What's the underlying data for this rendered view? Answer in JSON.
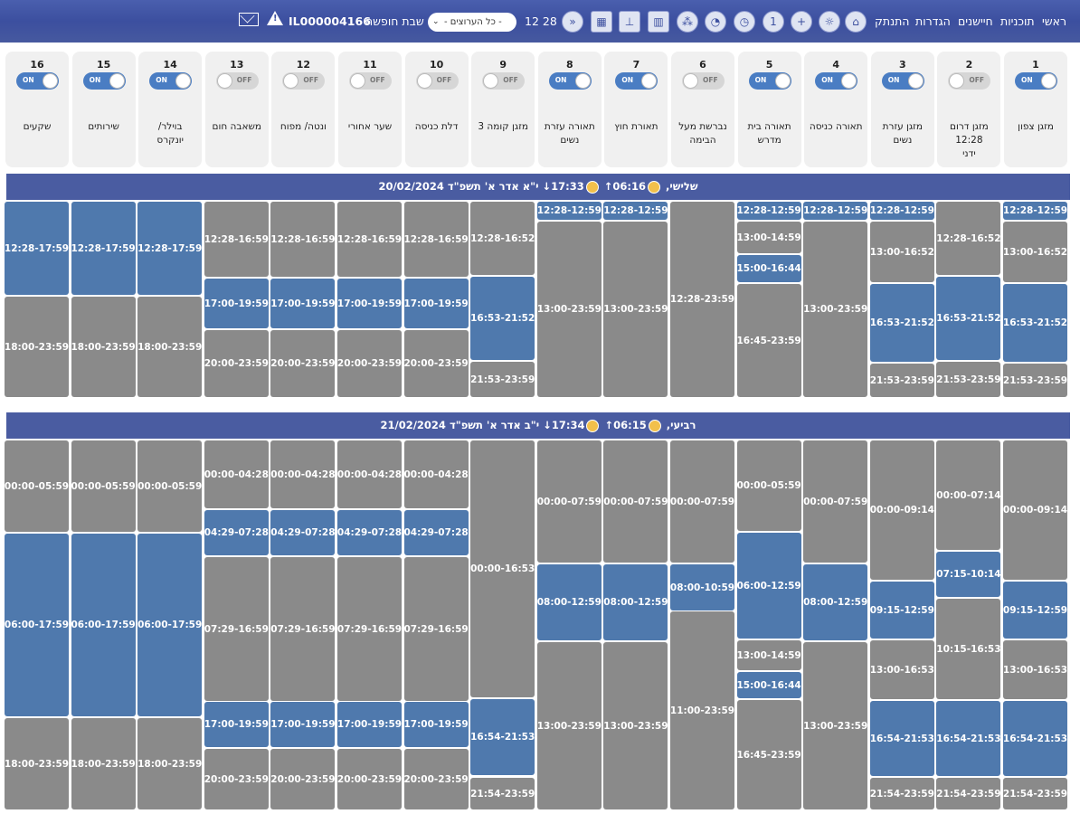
{
  "nav": {
    "items": [
      "ראשי",
      "תוכניות",
      "חיישנים",
      "הגדרות",
      "התנתק"
    ],
    "clock": "12 28",
    "dropdown_value": "- כל הערוצים -",
    "shabbat_label": "שבת חופשה",
    "device_id": "IL000004166",
    "icons": [
      "home-icon",
      "sun-timer-icon",
      "add-clock-icon",
      "timer-1-icon",
      "clock-grid-icon",
      "clock-plus-icon",
      "share-icon",
      "bar-chart-icon",
      "scale-icon",
      "grid-icon",
      "double-chevron-down-icon"
    ]
  },
  "channels": [
    {
      "num": "1",
      "name": "מזגן צפון",
      "state": "ON"
    },
    {
      "num": "2",
      "name": "מזגן דרום\n12:28\nידני",
      "state": "OFF"
    },
    {
      "num": "3",
      "name": "מזגן עזרת\nנשים",
      "state": "ON"
    },
    {
      "num": "4",
      "name": "תאורה כניסה",
      "state": "ON"
    },
    {
      "num": "5",
      "name": "תאורה בית\nמדרש",
      "state": "ON"
    },
    {
      "num": "6",
      "name": "נברשת מעל\nהבימה",
      "state": "OFF"
    },
    {
      "num": "7",
      "name": "תאורת חוץ",
      "state": "ON"
    },
    {
      "num": "8",
      "name": "תאורה עזרת\nנשים",
      "state": "ON"
    },
    {
      "num": "9",
      "name": "מזגן קומה 3",
      "state": "OFF"
    },
    {
      "num": "10",
      "name": "דלת כניסה",
      "state": "OFF"
    },
    {
      "num": "11",
      "name": "שער אחורי",
      "state": "OFF"
    },
    {
      "num": "12",
      "name": "ונטה/ מפוח",
      "state": "OFF"
    },
    {
      "num": "13",
      "name": "משאבה חום",
      "state": "OFF"
    },
    {
      "num": "14",
      "name": "בוילר/\nיונקרס",
      "state": "ON"
    },
    {
      "num": "15",
      "name": "שירותים",
      "state": "ON"
    },
    {
      "num": "16",
      "name": "שקעים",
      "state": "ON"
    }
  ],
  "days": [
    {
      "header": {
        "date_text": "20/02/2024 שלישי,",
        "sunrise": "06:16↑",
        "sunset": "17:33↓",
        "hebrew_date": "י\"א אדר א' תשפ\"ד"
      },
      "columns": [
        [
          {
            "t": "12:28-12:59",
            "a": true
          },
          {
            "t": "13:00-16:52",
            "a": false
          },
          {
            "t": "16:53-21:52",
            "a": true
          },
          {
            "t": "21:53-23:59",
            "a": false
          }
        ],
        [
          {
            "t": "12:28-16:52",
            "a": false
          },
          {
            "t": "16:53-21:52",
            "a": true
          },
          {
            "t": "21:53-23:59",
            "a": false
          }
        ],
        [
          {
            "t": "12:28-12:59",
            "a": true
          },
          {
            "t": "13:00-16:52",
            "a": false
          },
          {
            "t": "16:53-21:52",
            "a": true
          },
          {
            "t": "21:53-23:59",
            "a": false
          }
        ],
        [
          {
            "t": "12:28-12:59",
            "a": true
          },
          {
            "t": "13:00-23:59",
            "a": false
          }
        ],
        [
          {
            "t": "12:28-12:59",
            "a": true
          },
          {
            "t": "13:00-14:59",
            "a": false
          },
          {
            "t": "15:00-16:44",
            "a": true
          },
          {
            "t": "16:45-23:59",
            "a": false
          }
        ],
        [
          {
            "t": "12:28-23:59",
            "a": false
          }
        ],
        [
          {
            "t": "12:28-12:59",
            "a": true
          },
          {
            "t": "13:00-23:59",
            "a": false
          }
        ],
        [
          {
            "t": "12:28-12:59",
            "a": true
          },
          {
            "t": "13:00-23:59",
            "a": false
          }
        ],
        [
          {
            "t": "12:28-16:52",
            "a": false
          },
          {
            "t": "16:53-21:52",
            "a": true
          },
          {
            "t": "21:53-23:59",
            "a": false
          }
        ],
        [
          {
            "t": "12:28-16:59",
            "a": false
          },
          {
            "t": "17:00-19:59",
            "a": true
          },
          {
            "t": "20:00-23:59",
            "a": false
          }
        ],
        [
          {
            "t": "12:28-16:59",
            "a": false
          },
          {
            "t": "17:00-19:59",
            "a": true
          },
          {
            "t": "20:00-23:59",
            "a": false
          }
        ],
        [
          {
            "t": "12:28-16:59",
            "a": false
          },
          {
            "t": "17:00-19:59",
            "a": true
          },
          {
            "t": "20:00-23:59",
            "a": false
          }
        ],
        [
          {
            "t": "12:28-16:59",
            "a": false
          },
          {
            "t": "17:00-19:59",
            "a": true
          },
          {
            "t": "20:00-23:59",
            "a": false
          }
        ],
        [
          {
            "t": "12:28-17:59",
            "a": true
          },
          {
            "t": "18:00-23:59",
            "a": false
          }
        ],
        [
          {
            "t": "12:28-17:59",
            "a": true
          },
          {
            "t": "18:00-23:59",
            "a": false
          }
        ],
        [
          {
            "t": "12:28-17:59",
            "a": true
          },
          {
            "t": "18:00-23:59",
            "a": false
          }
        ]
      ]
    },
    {
      "header": {
        "date_text": "21/02/2024 רביעי,",
        "sunrise": "06:15↑",
        "sunset": "17:34↓",
        "hebrew_date": "י\"ב אדר א' תשפ\"ד"
      },
      "columns": [
        [
          {
            "t": "00:00-09:14",
            "a": false
          },
          {
            "t": "09:15-12:59",
            "a": true
          },
          {
            "t": "13:00-16:53",
            "a": false
          },
          {
            "t": "16:54-21:53",
            "a": true
          },
          {
            "t": "21:54-23:59",
            "a": false
          }
        ],
        [
          {
            "t": "00:00-07:14",
            "a": false
          },
          {
            "t": "07:15-10:14",
            "a": true
          },
          {
            "t": "10:15-16:53",
            "a": false
          },
          {
            "t": "16:54-21:53",
            "a": true
          },
          {
            "t": "21:54-23:59",
            "a": false
          }
        ],
        [
          {
            "t": "00:00-09:14",
            "a": false
          },
          {
            "t": "09:15-12:59",
            "a": true
          },
          {
            "t": "13:00-16:53",
            "a": false
          },
          {
            "t": "16:54-21:53",
            "a": true
          },
          {
            "t": "21:54-23:59",
            "a": false
          }
        ],
        [
          {
            "t": "00:00-07:59",
            "a": false
          },
          {
            "t": "08:00-12:59",
            "a": true
          },
          {
            "t": "13:00-23:59",
            "a": false
          }
        ],
        [
          {
            "t": "00:00-05:59",
            "a": false
          },
          {
            "t": "06:00-12:59",
            "a": true
          },
          {
            "t": "13:00-14:59",
            "a": false
          },
          {
            "t": "15:00-16:44",
            "a": true
          },
          {
            "t": "16:45-23:59",
            "a": false
          }
        ],
        [
          {
            "t": "00:00-07:59",
            "a": false
          },
          {
            "t": "08:00-10:59",
            "a": true
          },
          {
            "t": "11:00-23:59",
            "a": false
          }
        ],
        [
          {
            "t": "00:00-07:59",
            "a": false
          },
          {
            "t": "08:00-12:59",
            "a": true
          },
          {
            "t": "13:00-23:59",
            "a": false
          }
        ],
        [
          {
            "t": "00:00-07:59",
            "a": false
          },
          {
            "t": "08:00-12:59",
            "a": true
          },
          {
            "t": "13:00-23:59",
            "a": false
          }
        ],
        [
          {
            "t": "00:00-16:53",
            "a": false
          },
          {
            "t": "16:54-21:53",
            "a": true
          },
          {
            "t": "21:54-23:59",
            "a": false
          }
        ],
        [
          {
            "t": "00:00-04:28",
            "a": false
          },
          {
            "t": "04:29-07:28",
            "a": true
          },
          {
            "t": "07:29-16:59",
            "a": false
          },
          {
            "t": "17:00-19:59",
            "a": true
          },
          {
            "t": "20:00-23:59",
            "a": false
          }
        ],
        [
          {
            "t": "00:00-04:28",
            "a": false
          },
          {
            "t": "04:29-07:28",
            "a": true
          },
          {
            "t": "07:29-16:59",
            "a": false
          },
          {
            "t": "17:00-19:59",
            "a": true
          },
          {
            "t": "20:00-23:59",
            "a": false
          }
        ],
        [
          {
            "t": "00:00-04:28",
            "a": false
          },
          {
            "t": "04:29-07:28",
            "a": true
          },
          {
            "t": "07:29-16:59",
            "a": false
          },
          {
            "t": "17:00-19:59",
            "a": true
          },
          {
            "t": "20:00-23:59",
            "a": false
          }
        ],
        [
          {
            "t": "00:00-04:28",
            "a": false
          },
          {
            "t": "04:29-07:28",
            "a": true
          },
          {
            "t": "07:29-16:59",
            "a": false
          },
          {
            "t": "17:00-19:59",
            "a": true
          },
          {
            "t": "20:00-23:59",
            "a": false
          }
        ],
        [
          {
            "t": "00:00-05:59",
            "a": false
          },
          {
            "t": "06:00-17:59",
            "a": true
          },
          {
            "t": "18:00-23:59",
            "a": false
          }
        ],
        [
          {
            "t": "00:00-05:59",
            "a": false
          },
          {
            "t": "06:00-17:59",
            "a": true
          },
          {
            "t": "18:00-23:59",
            "a": false
          }
        ],
        [
          {
            "t": "00:00-05:59",
            "a": false
          },
          {
            "t": "06:00-17:59",
            "a": true
          },
          {
            "t": "18:00-23:59",
            "a": false
          }
        ]
      ]
    }
  ]
}
